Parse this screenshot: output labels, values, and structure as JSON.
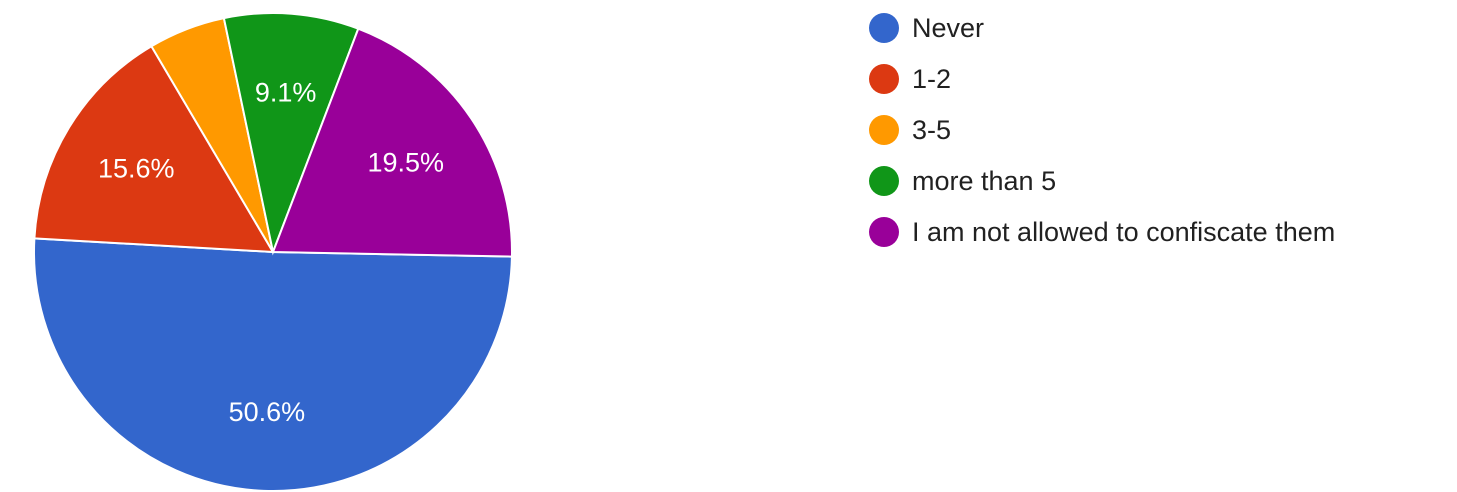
{
  "chart_data": {
    "type": "pie",
    "legend_position": "right",
    "slices": [
      {
        "label": "Never",
        "value": 50.6,
        "display": "50.6%",
        "color": "#3366cc"
      },
      {
        "label": "1-2",
        "value": 15.6,
        "display": "15.6%",
        "color": "#dc3912"
      },
      {
        "label": "3-5",
        "value": 5.2,
        "display": "",
        "color": "#ff9900"
      },
      {
        "label": "more than 5",
        "value": 9.1,
        "display": "9.1%",
        "color": "#109618"
      },
      {
        "label": "I am not allowed to confiscate them",
        "value": 19.5,
        "display": "19.5%",
        "color": "#990099"
      }
    ]
  }
}
